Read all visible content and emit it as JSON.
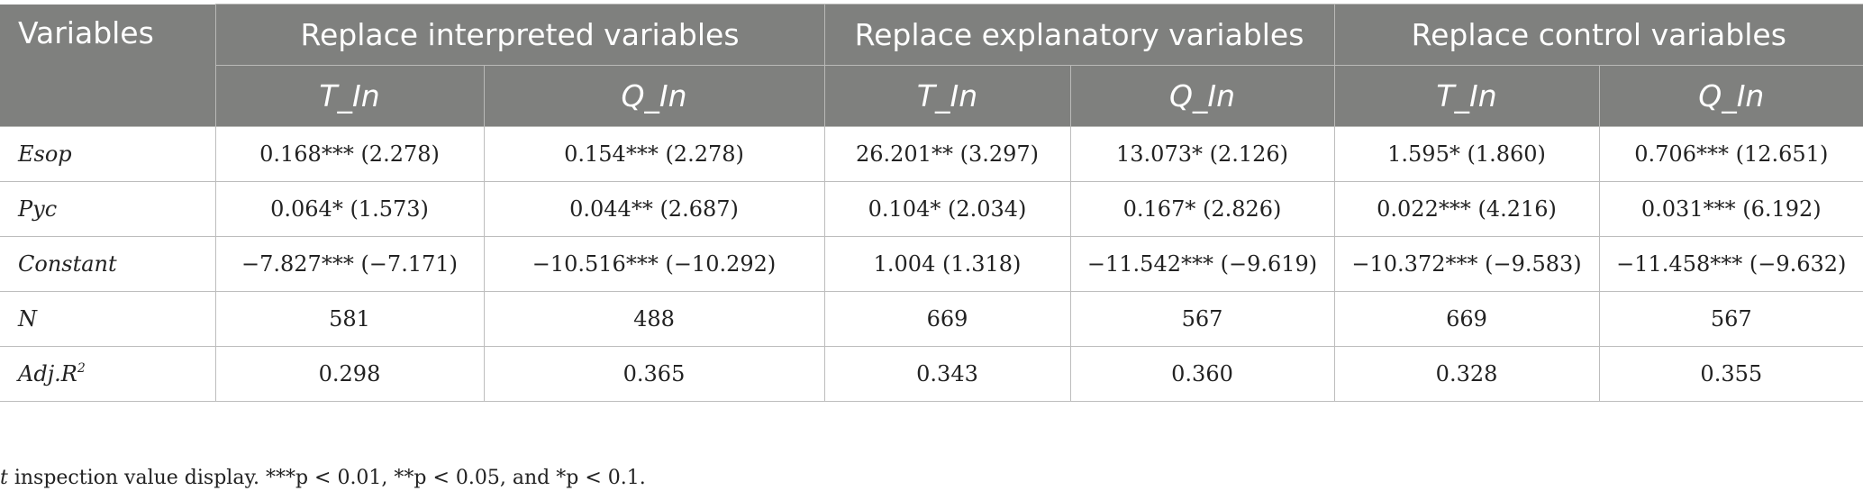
{
  "table": {
    "variables_header": "Variables",
    "groups": [
      {
        "label": "Replace interpreted variables"
      },
      {
        "label": "Replace explanatory variables"
      },
      {
        "label": "Replace control variables"
      }
    ],
    "subheaders": [
      "T_In",
      "Q_In",
      "T_In",
      "Q_In",
      "T_In",
      "Q_In"
    ],
    "rows": [
      {
        "label": "Esop",
        "cells": [
          "0.168*** (2.278)",
          "0.154*** (2.278)",
          "26.201** (3.297)",
          "13.073* (2.126)",
          "1.595* (1.860)",
          "0.706*** (12.651)"
        ]
      },
      {
        "label": "Pyc",
        "cells": [
          "0.064* (1.573)",
          "0.044** (2.687)",
          "0.104* (2.034)",
          "0.167* (2.826)",
          "0.022*** (4.216)",
          "0.031*** (6.192)"
        ]
      },
      {
        "label": "Constant",
        "cells": [
          "−7.827*** (−7.171)",
          "−10.516*** (−10.292)",
          "1.004 (1.318)",
          "−11.542*** (−9.619)",
          "−10.372*** (−9.583)",
          "−11.458*** (−9.632)"
        ]
      },
      {
        "label": "N",
        "cells": [
          "581",
          "488",
          "669",
          "567",
          "669",
          "567"
        ]
      },
      {
        "label": "Adj.R",
        "label_sup": "2",
        "cells": [
          "0.298",
          "0.365",
          "0.343",
          "0.360",
          "0.328",
          "0.355"
        ]
      }
    ]
  },
  "note": {
    "t_letter": "t",
    "text": " inspection value display. ***p < 0.01, **p < 0.05, and *p < 0.1."
  }
}
